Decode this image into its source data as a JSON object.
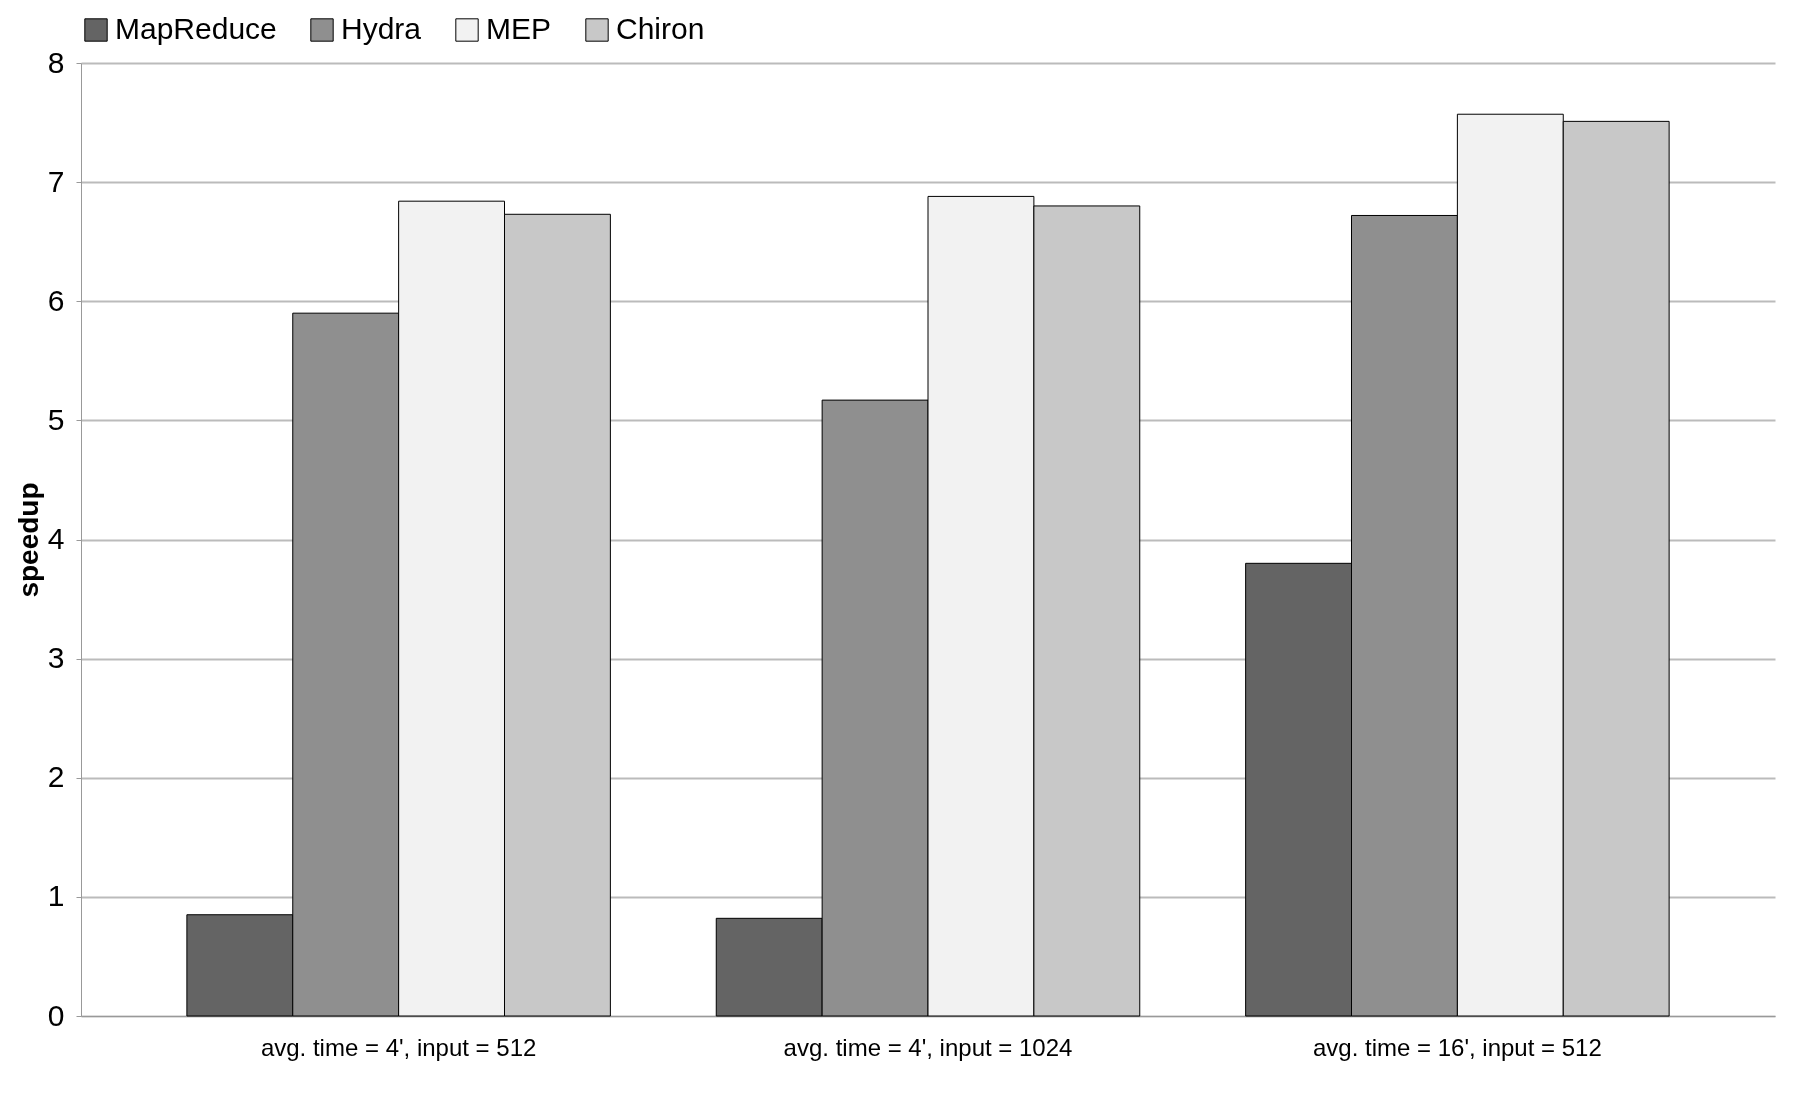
{
  "chart_data": {
    "type": "bar",
    "ylabel": "speedup",
    "categories": [
      "avg. time = 4', input = 512",
      "avg. time = 4', input = 1024",
      "avg. time = 16', input = 512"
    ],
    "series": [
      {
        "name": "MapReduce",
        "color": "#646464",
        "values": [
          0.85,
          0.82,
          3.8
        ]
      },
      {
        "name": "Hydra",
        "color": "#8f8f8f",
        "values": [
          5.9,
          5.17,
          6.72
        ]
      },
      {
        "name": "MEP",
        "color": "#f2f2f2",
        "values": [
          6.84,
          6.88,
          7.57
        ]
      },
      {
        "name": "Chiron",
        "color": "#c8c8c8",
        "values": [
          6.73,
          6.8,
          7.51
        ]
      }
    ],
    "ylim": [
      0,
      8
    ],
    "yticks": [
      0,
      1,
      2,
      3,
      4,
      5,
      6,
      7,
      8
    ],
    "grid": "y",
    "legend": "top"
  }
}
